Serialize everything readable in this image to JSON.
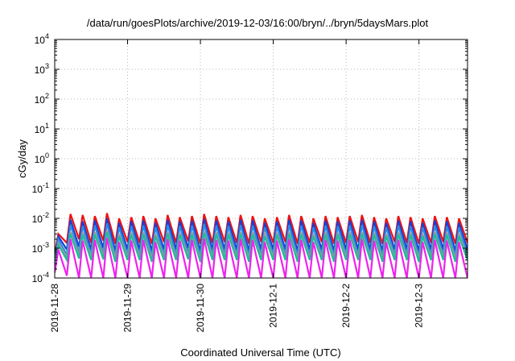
{
  "chart_data": {
    "type": "line",
    "title": "/data/run/goesPlots/archive/2019-12-03/16:00/bryn/../bryn/5daysMars.plot",
    "xlabel": "Coordinated Universal Time (UTC)",
    "ylabel": "cGy/day",
    "yscale": "log",
    "ylim": [
      0.0001,
      10000
    ],
    "ytick_labels": [
      {
        "base": "10",
        "exp": "-4"
      },
      {
        "base": "10",
        "exp": "-3"
      },
      {
        "base": "10",
        "exp": "-2"
      },
      {
        "base": "10",
        "exp": "-1"
      },
      {
        "base": "10",
        "exp": "0"
      },
      {
        "base": "10",
        "exp": "1"
      },
      {
        "base": "10",
        "exp": "2"
      },
      {
        "base": "10",
        "exp": "3"
      },
      {
        "base": "10",
        "exp": "4"
      }
    ],
    "xlim": [
      "2019-11-28",
      "2019-12-03T16:00"
    ],
    "x_tick_labels": [
      "2019-11-28",
      "2019-11-29",
      "2019-11-30",
      "2019-12-1",
      "2019-12-2",
      "2019-12-3"
    ],
    "grid": true,
    "sawtooth_period_hours": 4,
    "series": [
      {
        "color": "#ee1111",
        "peak_values": [
          0.003,
          0.014,
          0.013,
          0.012,
          0.015,
          0.01,
          0.011,
          0.012,
          0.01,
          0.013,
          0.011,
          0.012,
          0.014,
          0.012,
          0.011,
          0.013,
          0.012,
          0.01,
          0.011,
          0.013,
          0.012,
          0.01,
          0.012,
          0.011,
          0.012,
          0.013,
          0.011,
          0.01,
          0.012,
          0.011,
          0.01,
          0.012,
          0.011,
          0.01,
          0.012,
          0.011,
          0.009
        ],
        "trough_values": [
          0.0006,
          0.0015,
          0.002,
          0.0015,
          0.0018,
          0.0014,
          0.0016,
          0.0015,
          0.0014,
          0.0016,
          0.0015,
          0.0017,
          0.0014,
          0.0015,
          0.0016,
          0.0015,
          0.0014,
          0.0016,
          0.0015,
          0.0016,
          0.0014,
          0.0015,
          0.0016,
          0.0014,
          0.0015,
          0.0016,
          0.0015,
          0.0014,
          0.0016,
          0.0015,
          0.0014,
          0.0015,
          0.0016,
          0.0014,
          0.0015,
          0.0016,
          0.0014
        ]
      },
      {
        "color": "#1a3fd6",
        "peak_values": [
          0.0025,
          0.009,
          0.008,
          0.0085,
          0.01,
          0.007,
          0.008,
          0.0085,
          0.007,
          0.009,
          0.008,
          0.0085,
          0.0095,
          0.0085,
          0.008,
          0.009,
          0.0085,
          0.007,
          0.008,
          0.009,
          0.0085,
          0.007,
          0.0085,
          0.008,
          0.0085,
          0.009,
          0.008,
          0.007,
          0.0085,
          0.008,
          0.007,
          0.0085,
          0.008,
          0.007,
          0.0085,
          0.008,
          0.0065
        ],
        "trough_values": [
          0.0004,
          0.0009,
          0.0011,
          0.0009,
          0.001,
          0.0008,
          0.0009,
          0.0009,
          0.0008,
          0.0009,
          0.0009,
          0.001,
          0.0008,
          0.0009,
          0.0009,
          0.0009,
          0.0008,
          0.0009,
          0.0009,
          0.0009,
          0.0008,
          0.0009,
          0.0009,
          0.0008,
          0.0009,
          0.0009,
          0.0009,
          0.0008,
          0.0009,
          0.0009,
          0.0008,
          0.0009,
          0.0009,
          0.0008,
          0.0009,
          0.0009,
          0.0008
        ]
      },
      {
        "color": "#2a8ce8",
        "peak_values": [
          0.002,
          0.006,
          0.0055,
          0.0058,
          0.0068,
          0.005,
          0.0055,
          0.0058,
          0.005,
          0.006,
          0.0055,
          0.0058,
          0.0065,
          0.0058,
          0.0055,
          0.006,
          0.0058,
          0.005,
          0.0055,
          0.006,
          0.0058,
          0.005,
          0.0058,
          0.0055,
          0.0058,
          0.006,
          0.0055,
          0.005,
          0.0058,
          0.0055,
          0.005,
          0.0058,
          0.0055,
          0.005,
          0.0058,
          0.0055,
          0.0045
        ],
        "trough_values": [
          0.0003,
          0.0006,
          0.0007,
          0.0006,
          0.00065,
          0.00055,
          0.0006,
          0.0006,
          0.00055,
          0.0006,
          0.0006,
          0.00065,
          0.00055,
          0.0006,
          0.0006,
          0.0006,
          0.00055,
          0.0006,
          0.0006,
          0.0006,
          0.00055,
          0.0006,
          0.0006,
          0.00055,
          0.0006,
          0.0006,
          0.0006,
          0.00055,
          0.0006,
          0.0006,
          0.00055,
          0.0006,
          0.0006,
          0.00055,
          0.0006,
          0.0006,
          0.00055
        ]
      },
      {
        "color": "#9a9a9a",
        "peak_values": [
          0.0015,
          0.0035,
          0.0033,
          0.0034,
          0.004,
          0.003,
          0.0033,
          0.0034,
          0.003,
          0.0035,
          0.0033,
          0.0034,
          0.0038,
          0.0034,
          0.0033,
          0.0035,
          0.0034,
          0.003,
          0.0033,
          0.0035,
          0.0034,
          0.003,
          0.0034,
          0.0033,
          0.0034,
          0.0035,
          0.0033,
          0.003,
          0.0034,
          0.0033,
          0.003,
          0.0034,
          0.0033,
          0.003,
          0.0034,
          0.0033,
          0.0028
        ],
        "trough_values": [
          0.0003,
          0.0005,
          0.0006,
          0.0005,
          0.00055,
          0.00045,
          0.0005,
          0.0005,
          0.00045,
          0.0005,
          0.0005,
          0.00055,
          0.00045,
          0.0005,
          0.0005,
          0.0005,
          0.00045,
          0.0005,
          0.0005,
          0.0005,
          0.00045,
          0.0005,
          0.0005,
          0.00045,
          0.0005,
          0.0005,
          0.0005,
          0.00045,
          0.0005,
          0.0005,
          0.00045,
          0.0005,
          0.0005,
          0.00045,
          0.0005,
          0.0005,
          0.00045
        ]
      },
      {
        "color": "#22bb99",
        "peak_values": [
          0.0013,
          0.003,
          0.0028,
          0.0029,
          0.0034,
          0.0025,
          0.0028,
          0.0029,
          0.0025,
          0.003,
          0.0028,
          0.0029,
          0.0032,
          0.0029,
          0.0028,
          0.003,
          0.0029,
          0.0025,
          0.0028,
          0.003,
          0.0029,
          0.0025,
          0.0029,
          0.0028,
          0.0029,
          0.003,
          0.0028,
          0.0025,
          0.0029,
          0.0028,
          0.0025,
          0.0029,
          0.0028,
          0.0025,
          0.0029,
          0.0028,
          0.0023
        ],
        "trough_values": [
          0.00025,
          0.0004,
          0.00045,
          0.0004,
          0.00042,
          0.00035,
          0.0004,
          0.0004,
          0.00035,
          0.0004,
          0.0004,
          0.00042,
          0.00035,
          0.0004,
          0.0004,
          0.0004,
          0.00035,
          0.0004,
          0.0004,
          0.0004,
          0.00035,
          0.0004,
          0.0004,
          0.00035,
          0.0004,
          0.0004,
          0.0004,
          0.00035,
          0.0004,
          0.0004,
          0.00035,
          0.0004,
          0.0004,
          0.00035,
          0.0004,
          0.0004,
          0.00035
        ]
      },
      {
        "color": "#ee22ee",
        "peak_values": [
          0.0009,
          0.002,
          0.0018,
          0.0019,
          0.0022,
          0.0016,
          0.0018,
          0.0019,
          0.0016,
          0.002,
          0.0018,
          0.0019,
          0.0021,
          0.0019,
          0.0018,
          0.002,
          0.0019,
          0.0016,
          0.0018,
          0.002,
          0.0019,
          0.0016,
          0.0019,
          0.0018,
          0.0019,
          0.002,
          0.0018,
          0.0016,
          0.0019,
          0.0018,
          0.0016,
          0.0019,
          0.0018,
          0.0016,
          0.0019,
          0.0018,
          0.0015
        ],
        "trough_values": [
          0.00015,
          0.00012,
          0.0001,
          0.0001,
          0.0001,
          0.0001,
          0.0001,
          0.0001,
          0.0001,
          0.0001,
          0.0001,
          0.0001,
          0.0001,
          0.0001,
          0.0001,
          0.0001,
          0.0001,
          0.0001,
          0.0001,
          0.0001,
          0.0001,
          0.0001,
          0.0001,
          0.0001,
          0.0001,
          0.0001,
          0.0001,
          0.0001,
          0.0001,
          0.0001,
          0.0001,
          0.0001,
          0.0001,
          0.0001,
          0.0001,
          0.0001,
          0.0001
        ]
      }
    ]
  }
}
